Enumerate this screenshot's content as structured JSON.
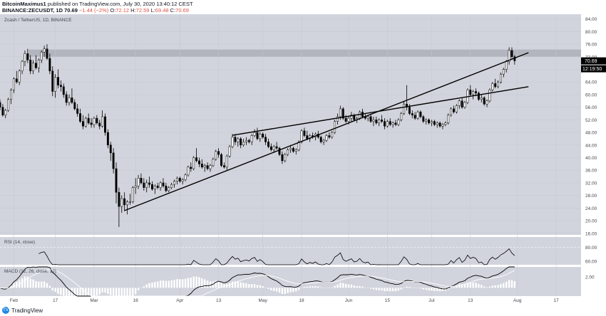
{
  "header": {
    "publisher": "BitcoinMaximus1",
    "published_text": "published on TradingView.com, July 30, 2020 13:40:12 CEST",
    "symbol": "BINANCE:ZECUSDT, 1D",
    "price": "70.69",
    "change": "−1.44 (−2%)",
    "o_label": "O:",
    "o": "72.12",
    "h_label": "H:",
    "h": "72.59",
    "l_label": "L:",
    "l": "69.48",
    "c_label": "C:",
    "c": "70.69"
  },
  "footer": {
    "brand": "TradingView",
    "logo_glyph": "TV"
  },
  "colors": {
    "pane_bg": "#d1d4dc",
    "candle_up": "#ffffff",
    "candle_down": "#000000",
    "wick": "#000000",
    "resistance_band": "#b2b5be",
    "price_tag_bg": "#000000",
    "macd_line": "#000000",
    "signal_line": "#ffffff"
  },
  "chart_data": {
    "type": "candlestick",
    "title": "Zcash / TetherUS, 1D, BINANCE",
    "last_price_label": "70.69",
    "countdown_label": "12:19:50",
    "y_ticks": [
      "84.00",
      "80.00",
      "76.00",
      "72.00",
      "68.00",
      "64.00",
      "60.00",
      "56.00",
      "52.00",
      "48.00",
      "44.00",
      "40.00",
      "36.00",
      "32.00",
      "28.00",
      "24.00",
      "20.00",
      "16.00"
    ],
    "ylim": [
      15.5,
      85.5
    ],
    "x_ticks": [
      {
        "day": 0,
        "label": "Feb"
      },
      {
        "day": 15,
        "label": "17"
      },
      {
        "day": 29,
        "label": "Mar"
      },
      {
        "day": 44,
        "label": "16"
      },
      {
        "day": 60,
        "label": "Apr"
      },
      {
        "day": 74,
        "label": "13"
      },
      {
        "day": 90,
        "label": "May"
      },
      {
        "day": 104,
        "label": "18"
      },
      {
        "day": 121,
        "label": "Jun"
      },
      {
        "day": 135,
        "label": "15"
      },
      {
        "day": 151,
        "label": "Jul"
      },
      {
        "day": 165,
        "label": "13"
      },
      {
        "day": 182,
        "label": "Aug"
      },
      {
        "day": 196,
        "label": "17"
      }
    ],
    "x_range_days": [
      -5,
      205
    ],
    "resistance_band": {
      "from": 72.0,
      "to": 74.3
    },
    "channel_lines": [
      {
        "x0": 40,
        "y0": 23.2,
        "x1": 186,
        "y1": 73.3
      },
      {
        "x0": 79,
        "y0": 47.1,
        "x1": 186,
        "y1": 62.5
      }
    ],
    "candles": [
      [
        -5,
        57.5,
        58.5,
        55.0,
        56.0
      ],
      [
        -4,
        56.0,
        57.0,
        53.0,
        53.5
      ],
      [
        -3,
        53.5,
        55.5,
        52.5,
        55.0
      ],
      [
        -2,
        55.0,
        59.0,
        54.5,
        58.5
      ],
      [
        -1,
        58.5,
        62.0,
        57.0,
        61.5
      ],
      [
        0,
        61.5,
        65.5,
        60.5,
        65.0
      ],
      [
        1,
        65.0,
        67.5,
        63.5,
        64.0
      ],
      [
        2,
        64.0,
        68.0,
        63.0,
        67.5
      ],
      [
        3,
        67.5,
        71.0,
        66.5,
        70.5
      ],
      [
        4,
        70.5,
        74.0,
        69.0,
        73.0
      ],
      [
        5,
        73.0,
        74.5,
        70.0,
        71.0
      ],
      [
        6,
        71.0,
        72.5,
        66.5,
        67.5
      ],
      [
        7,
        67.5,
        71.0,
        66.5,
        70.0
      ],
      [
        8,
        70.0,
        72.5,
        68.0,
        68.5
      ],
      [
        9,
        68.5,
        71.5,
        67.0,
        71.0
      ],
      [
        10,
        71.0,
        74.0,
        70.0,
        73.5
      ],
      [
        11,
        73.5,
        75.5,
        72.0,
        74.5
      ],
      [
        12,
        74.5,
        76.0,
        71.0,
        71.5
      ],
      [
        13,
        71.5,
        73.0,
        66.5,
        67.5
      ],
      [
        14,
        67.5,
        69.0,
        59.5,
        61.0
      ],
      [
        15,
        61.0,
        66.5,
        59.0,
        65.5
      ],
      [
        16,
        65.5,
        68.0,
        62.0,
        63.0
      ],
      [
        17,
        63.0,
        64.5,
        61.0,
        62.5
      ],
      [
        18,
        62.5,
        63.5,
        59.0,
        60.0
      ],
      [
        19,
        60.0,
        61.0,
        56.5,
        57.5
      ],
      [
        20,
        57.5,
        60.0,
        56.5,
        59.0
      ],
      [
        21,
        59.0,
        62.0,
        57.0,
        57.5
      ],
      [
        22,
        57.5,
        58.5,
        55.0,
        55.5
      ],
      [
        23,
        55.5,
        57.0,
        53.0,
        54.0
      ],
      [
        24,
        54.0,
        55.5,
        51.0,
        51.5
      ],
      [
        25,
        51.5,
        53.5,
        49.0,
        50.0
      ],
      [
        26,
        50.0,
        53.0,
        49.5,
        52.5
      ],
      [
        27,
        52.5,
        54.0,
        50.5,
        51.0
      ],
      [
        28,
        51.0,
        52.5,
        49.5,
        50.5
      ],
      [
        29,
        50.5,
        53.0,
        49.5,
        52.5
      ],
      [
        30,
        52.5,
        53.5,
        50.5,
        51.0
      ],
      [
        31,
        51.0,
        52.0,
        49.0,
        50.0
      ],
      [
        32,
        50.0,
        55.0,
        49.5,
        53.0
      ],
      [
        33,
        53.0,
        54.0,
        47.0,
        48.0
      ],
      [
        34,
        48.0,
        49.0,
        43.0,
        44.0
      ],
      [
        35,
        44.0,
        45.0,
        39.0,
        41.5
      ],
      [
        36,
        41.5,
        43.0,
        35.0,
        36.5
      ],
      [
        37,
        36.5,
        38.5,
        25.5,
        29.0
      ],
      [
        38,
        29.0,
        30.5,
        18.0,
        24.5
      ],
      [
        39,
        24.5,
        28.0,
        22.5,
        27.0
      ],
      [
        40,
        27.0,
        29.0,
        23.0,
        25.0
      ],
      [
        41,
        25.0,
        26.5,
        22.0,
        26.0
      ],
      [
        42,
        26.0,
        28.5,
        25.0,
        26.0
      ],
      [
        43,
        26.0,
        31.0,
        25.5,
        30.5
      ],
      [
        44,
        30.5,
        33.5,
        28.5,
        31.0
      ],
      [
        45,
        31.0,
        34.5,
        30.0,
        33.5
      ],
      [
        46,
        33.5,
        35.0,
        31.5,
        32.0
      ],
      [
        47,
        32.0,
        33.5,
        29.5,
        30.5
      ],
      [
        48,
        30.5,
        33.0,
        29.0,
        32.0
      ],
      [
        49,
        32.0,
        34.0,
        30.5,
        31.5
      ],
      [
        50,
        31.5,
        32.5,
        29.5,
        30.0
      ],
      [
        51,
        30.0,
        31.5,
        28.5,
        31.0
      ],
      [
        52,
        31.0,
        32.0,
        30.0,
        30.5
      ],
      [
        53,
        30.5,
        32.5,
        29.5,
        32.0
      ],
      [
        54,
        32.0,
        33.5,
        30.5,
        31.0
      ],
      [
        55,
        31.0,
        32.0,
        29.0,
        29.5
      ],
      [
        56,
        29.5,
        31.0,
        29.0,
        30.5
      ],
      [
        57,
        30.5,
        32.0,
        30.0,
        31.5
      ],
      [
        58,
        31.5,
        33.0,
        30.5,
        32.5
      ],
      [
        59,
        32.5,
        34.0,
        31.5,
        33.5
      ],
      [
        60,
        33.5,
        34.0,
        32.0,
        32.5
      ],
      [
        61,
        32.5,
        33.5,
        31.5,
        33.0
      ],
      [
        62,
        33.0,
        35.0,
        32.5,
        34.5
      ],
      [
        63,
        34.5,
        37.5,
        34.0,
        37.0
      ],
      [
        64,
        37.0,
        38.5,
        35.5,
        36.5
      ],
      [
        65,
        36.5,
        40.5,
        36.0,
        40.0
      ],
      [
        66,
        40.0,
        43.0,
        38.5,
        39.0
      ],
      [
        67,
        39.0,
        40.0,
        37.0,
        38.0
      ],
      [
        68,
        38.0,
        39.5,
        36.5,
        37.0
      ],
      [
        69,
        37.0,
        38.0,
        35.5,
        37.5
      ],
      [
        70,
        37.5,
        38.5,
        36.0,
        36.5
      ],
      [
        71,
        36.5,
        38.0,
        35.5,
        37.5
      ],
      [
        72,
        37.5,
        40.0,
        37.0,
        39.5
      ],
      [
        73,
        39.5,
        42.5,
        39.0,
        42.0
      ],
      [
        74,
        42.0,
        43.0,
        40.0,
        41.0
      ],
      [
        75,
        41.0,
        41.5,
        37.0,
        37.5
      ],
      [
        76,
        37.5,
        38.5,
        36.5,
        37.0
      ],
      [
        77,
        37.0,
        41.0,
        36.0,
        40.5
      ],
      [
        78,
        40.5,
        44.0,
        40.0,
        43.5
      ],
      [
        79,
        43.5,
        47.5,
        43.0,
        46.5
      ],
      [
        80,
        46.5,
        47.5,
        44.0,
        45.0
      ],
      [
        81,
        45.0,
        46.5,
        43.5,
        46.0
      ],
      [
        82,
        46.0,
        46.5,
        43.0,
        44.0
      ],
      [
        83,
        44.0,
        46.0,
        43.5,
        45.0
      ],
      [
        84,
        45.0,
        46.5,
        44.0,
        45.5
      ],
      [
        85,
        45.5,
        46.0,
        44.5,
        45.0
      ],
      [
        86,
        45.0,
        47.5,
        44.0,
        47.0
      ],
      [
        87,
        47.0,
        49.0,
        46.5,
        48.0
      ],
      [
        88,
        48.0,
        49.5,
        45.5,
        46.0
      ],
      [
        89,
        46.0,
        48.0,
        45.0,
        47.5
      ],
      [
        90,
        47.5,
        48.0,
        46.0,
        46.5
      ],
      [
        91,
        46.5,
        47.5,
        44.0,
        45.0
      ],
      [
        92,
        45.0,
        46.0,
        43.0,
        43.5
      ],
      [
        93,
        43.5,
        44.5,
        42.0,
        42.5
      ],
      [
        94,
        42.5,
        44.0,
        41.5,
        43.5
      ],
      [
        95,
        43.5,
        45.0,
        42.5,
        43.0
      ],
      [
        96,
        43.0,
        43.5,
        40.5,
        41.0
      ],
      [
        97,
        41.0,
        42.0,
        38.0,
        39.0
      ],
      [
        98,
        39.0,
        41.5,
        38.5,
        41.0
      ],
      [
        99,
        41.0,
        43.0,
        40.5,
        42.5
      ],
      [
        100,
        42.5,
        44.0,
        41.5,
        43.0
      ],
      [
        101,
        43.0,
        43.5,
        41.5,
        42.0
      ],
      [
        102,
        42.0,
        43.0,
        41.0,
        42.5
      ],
      [
        103,
        42.5,
        45.5,
        42.0,
        45.0
      ],
      [
        104,
        45.0,
        49.0,
        44.5,
        48.5
      ],
      [
        105,
        48.5,
        49.5,
        46.5,
        47.0
      ],
      [
        106,
        47.0,
        48.5,
        45.5,
        46.0
      ],
      [
        107,
        46.0,
        47.5,
        45.0,
        47.0
      ],
      [
        108,
        47.0,
        48.0,
        46.0,
        46.5
      ],
      [
        109,
        46.5,
        48.0,
        45.5,
        47.5
      ],
      [
        110,
        47.5,
        48.5,
        46.0,
        46.5
      ],
      [
        111,
        46.5,
        47.0,
        44.5,
        45.0
      ],
      [
        112,
        45.0,
        46.0,
        44.0,
        45.5
      ],
      [
        113,
        45.5,
        47.5,
        45.0,
        47.0
      ],
      [
        114,
        47.0,
        48.0,
        46.0,
        46.5
      ],
      [
        115,
        46.5,
        48.5,
        46.0,
        48.0
      ],
      [
        116,
        48.0,
        52.0,
        47.5,
        51.5
      ],
      [
        117,
        51.5,
        54.0,
        50.5,
        53.0
      ],
      [
        118,
        53.0,
        56.5,
        52.0,
        55.5
      ],
      [
        119,
        55.5,
        56.0,
        52.0,
        52.5
      ],
      [
        120,
        52.5,
        53.5,
        51.0,
        51.5
      ],
      [
        121,
        51.5,
        53.0,
        50.5,
        52.5
      ],
      [
        122,
        52.5,
        54.5,
        51.5,
        53.5
      ],
      [
        123,
        53.5,
        54.0,
        51.5,
        52.0
      ],
      [
        124,
        52.0,
        53.0,
        51.0,
        52.5
      ],
      [
        125,
        52.5,
        55.0,
        52.0,
        54.5
      ],
      [
        126,
        54.5,
        55.5,
        52.5,
        53.0
      ],
      [
        127,
        53.0,
        54.0,
        52.0,
        52.5
      ],
      [
        128,
        52.5,
        53.5,
        51.5,
        53.0
      ],
      [
        129,
        53.0,
        54.0,
        51.0,
        51.5
      ],
      [
        130,
        51.5,
        53.0,
        50.0,
        52.0
      ],
      [
        131,
        52.0,
        53.0,
        50.5,
        51.0
      ],
      [
        132,
        51.0,
        52.5,
        50.0,
        52.0
      ],
      [
        133,
        52.0,
        53.5,
        51.0,
        51.5
      ],
      [
        134,
        51.5,
        52.5,
        49.0,
        50.0
      ],
      [
        135,
        50.0,
        52.0,
        49.5,
        51.5
      ],
      [
        136,
        51.5,
        52.5,
        50.0,
        50.5
      ],
      [
        137,
        50.5,
        51.5,
        49.5,
        51.0
      ],
      [
        138,
        51.0,
        52.0,
        50.0,
        50.5
      ],
      [
        139,
        50.5,
        52.5,
        50.0,
        52.0
      ],
      [
        140,
        52.0,
        54.5,
        51.5,
        54.0
      ],
      [
        141,
        54.0,
        58.0,
        53.5,
        57.0
      ],
      [
        142,
        57.0,
        63.0,
        55.0,
        56.0
      ],
      [
        143,
        56.0,
        57.0,
        53.5,
        54.0
      ],
      [
        144,
        54.0,
        55.0,
        52.5,
        53.5
      ],
      [
        145,
        53.5,
        54.5,
        52.0,
        52.5
      ],
      [
        146,
        52.5,
        55.0,
        52.0,
        54.5
      ],
      [
        147,
        54.5,
        55.0,
        52.5,
        53.0
      ],
      [
        148,
        53.0,
        53.5,
        51.0,
        51.5
      ],
      [
        149,
        51.5,
        52.5,
        50.5,
        52.0
      ],
      [
        150,
        52.0,
        52.5,
        50.5,
        51.0
      ],
      [
        151,
        51.0,
        52.0,
        50.0,
        51.5
      ],
      [
        152,
        51.5,
        52.0,
        50.0,
        50.5
      ],
      [
        153,
        50.5,
        51.5,
        49.5,
        51.0
      ],
      [
        154,
        51.0,
        51.5,
        49.5,
        50.0
      ],
      [
        155,
        50.0,
        51.0,
        49.0,
        50.5
      ],
      [
        156,
        50.5,
        51.5,
        50.0,
        51.0
      ],
      [
        157,
        51.0,
        54.0,
        50.5,
        53.5
      ],
      [
        158,
        53.5,
        56.0,
        53.0,
        55.5
      ],
      [
        159,
        55.5,
        56.5,
        54.0,
        54.5
      ],
      [
        160,
        54.5,
        57.0,
        54.0,
        56.5
      ],
      [
        161,
        56.5,
        58.5,
        55.5,
        58.0
      ],
      [
        162,
        58.0,
        59.0,
        55.5,
        56.0
      ],
      [
        163,
        56.0,
        58.0,
        55.5,
        57.5
      ],
      [
        164,
        57.5,
        62.0,
        57.0,
        61.5
      ],
      [
        165,
        61.5,
        63.0,
        59.5,
        60.0
      ],
      [
        166,
        60.0,
        61.5,
        58.5,
        61.0
      ],
      [
        167,
        61.0,
        62.0,
        59.5,
        60.5
      ],
      [
        168,
        60.5,
        61.0,
        58.0,
        58.5
      ],
      [
        169,
        58.5,
        60.0,
        57.5,
        59.0
      ],
      [
        170,
        59.0,
        59.5,
        56.5,
        57.0
      ],
      [
        171,
        57.0,
        58.5,
        56.0,
        58.0
      ],
      [
        172,
        58.0,
        62.0,
        57.5,
        61.5
      ],
      [
        173,
        61.5,
        64.0,
        61.0,
        63.5
      ],
      [
        174,
        63.5,
        65.0,
        62.0,
        62.5
      ],
      [
        175,
        62.5,
        64.5,
        62.0,
        64.0
      ],
      [
        176,
        64.0,
        67.0,
        63.5,
        66.5
      ],
      [
        177,
        66.5,
        68.5,
        65.5,
        68.0
      ],
      [
        178,
        68.0,
        71.0,
        67.0,
        70.5
      ],
      [
        179,
        70.5,
        75.0,
        69.5,
        74.0
      ],
      [
        180,
        74.0,
        75.0,
        71.0,
        72.0
      ],
      [
        181,
        72.0,
        72.5,
        69.5,
        70.7
      ]
    ],
    "rsi": {
      "label": "RSI (14, close)",
      "ticks": [
        "80.00",
        "60.00"
      ],
      "ylim": [
        55,
        95
      ],
      "overbought": 80
    },
    "macd": {
      "label": "MACD (12, 26, close, 12)",
      "ticks": [
        "2.00"
      ],
      "ylim": [
        -1.5,
        3.8
      ]
    }
  }
}
